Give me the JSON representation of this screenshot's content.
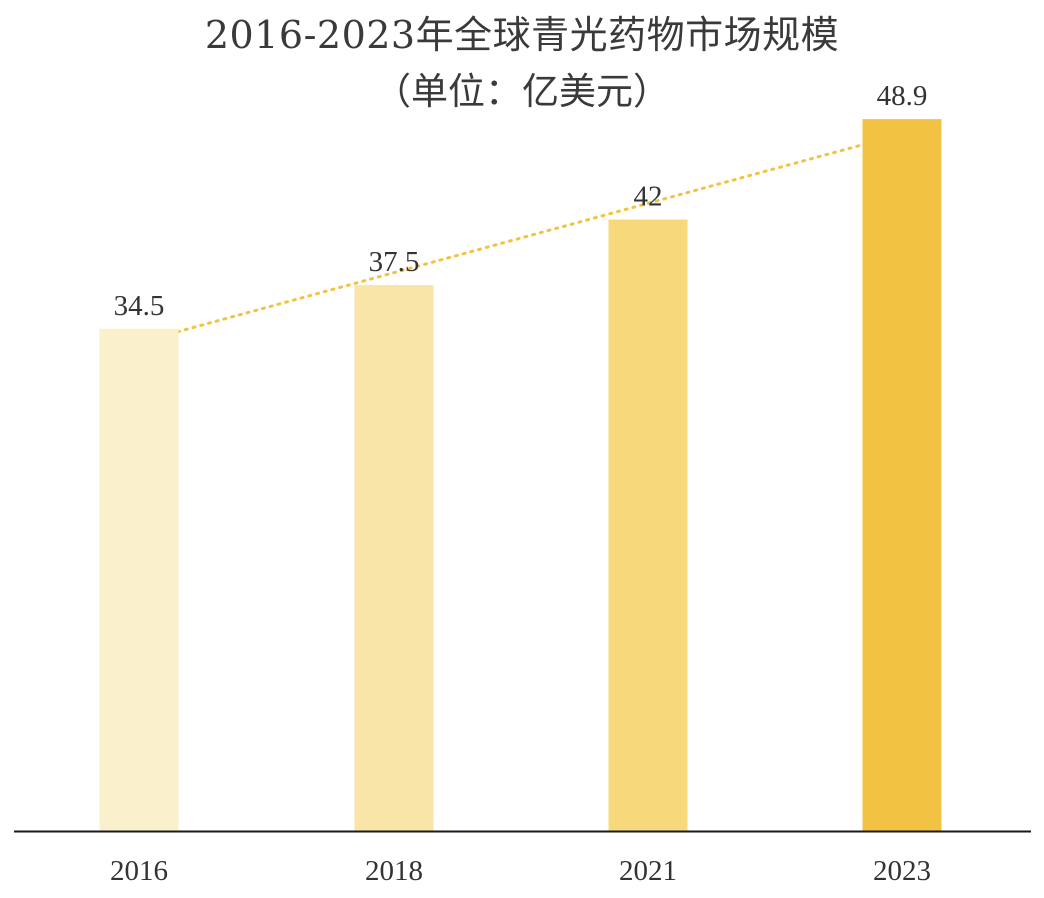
{
  "chart_data": {
    "type": "bar",
    "title": "2016-2023年全球青光药物市场规模",
    "subtitle": "（单位：亿美元）",
    "categories": [
      "2016",
      "2018",
      "2021",
      "2023"
    ],
    "values": [
      34.5,
      37.5,
      42,
      48.9
    ],
    "data_labels": [
      "34.5",
      "37.5",
      "42",
      "48.9"
    ],
    "ylim": [
      0,
      50.9
    ],
    "bar_colors": [
      "#fbf0cc",
      "#f9e5a7",
      "#f7d97b",
      "#f2c243"
    ],
    "trendline": {
      "type": "linear",
      "style": "dotted",
      "color": "#f2c243"
    },
    "grid": false,
    "legend": "none",
    "axis_color": "#1a1a1a"
  }
}
